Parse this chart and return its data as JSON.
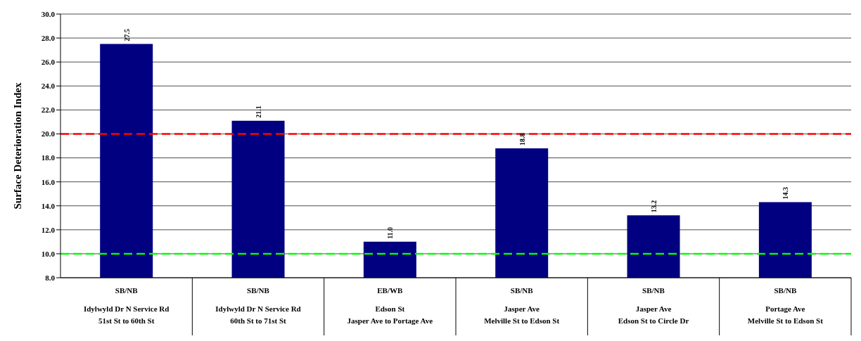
{
  "chart_data": {
    "type": "bar",
    "ylabel": "Surface Deterioration Index",
    "categories": [
      "SB/NB\nIdylwyld Dr N Service Rd\n51st St to 60th St",
      "SB/NB\nIdylwyld Dr N Service Rd\n60th St to 71st St",
      "EB/WB\nEdson St\nJasper Ave to Portage Ave",
      "SB/NB\nJasper Ave\nMelville St to Edson St",
      "SB/NB\nJasper Ave\nEdson St to Circle Dr",
      "SB/NB\nPortage Ave\nMelville St to Edson St"
    ],
    "values": [
      27.5,
      21.1,
      11.0,
      18.8,
      13.2,
      14.3
    ],
    "value_labels": [
      "27.5",
      "21.1",
      "11.0",
      "18.8",
      "13.2",
      "14.3"
    ],
    "color": "#000080",
    "ylim": [
      8,
      30
    ],
    "yticks": [
      {
        "value": 8,
        "label": "8.0"
      },
      {
        "value": 10,
        "label": "10.0"
      },
      {
        "value": 12,
        "label": "12.0"
      },
      {
        "value": 14,
        "label": "14.0"
      },
      {
        "value": 16,
        "label": "16.0"
      },
      {
        "value": 18,
        "label": "18.0"
      },
      {
        "value": 20,
        "label": "20.0"
      },
      {
        "value": 22,
        "label": "22.0"
      },
      {
        "value": 24,
        "label": "24.0"
      },
      {
        "value": 26,
        "label": "26.0"
      },
      {
        "value": 28,
        "label": "28.0"
      },
      {
        "value": 30,
        "label": "30.0"
      }
    ],
    "grid": "y",
    "ref_lines": [
      {
        "axis": "y",
        "value": 20,
        "color": "#ff0000",
        "line_style": "dashed"
      },
      {
        "axis": "y",
        "value": 10,
        "color": "#00ff00",
        "line_style": "dashed"
      }
    ]
  }
}
